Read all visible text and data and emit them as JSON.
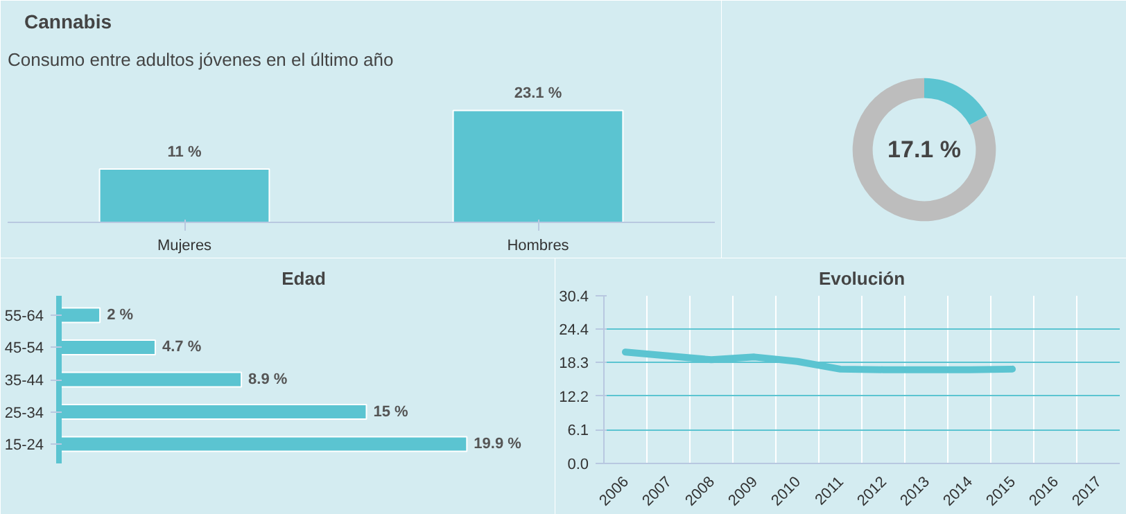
{
  "chart_data": [
    {
      "type": "bar",
      "title": "Cannabis",
      "subtitle": "Consumo entre adultos jóvenes en el último año",
      "categories": [
        "Mujeres",
        "Hombres"
      ],
      "values": [
        11,
        23.1
      ],
      "value_labels": [
        "11 %",
        "23.1 %"
      ],
      "color": "#5bc4d1",
      "tick_labels": "x",
      "grid": false
    },
    {
      "type": "donut",
      "categories": [
        null,
        null
      ],
      "values": [
        17.1,
        82.9
      ],
      "colors": [
        "#5bc4d1",
        "#bdbdbd"
      ],
      "value_labels": [
        "17.1 %",
        null
      ]
    },
    {
      "type": "bar",
      "orientation": "horizontal",
      "title": "Edad",
      "categories": [
        "55-64",
        "45-54",
        "35-44",
        "25-34",
        "15-24"
      ],
      "values": [
        2,
        4.7,
        8.9,
        15,
        19.9
      ],
      "value_labels": [
        "2 %",
        "4.7 %",
        "8.9 %",
        "15 %",
        "19.9 %"
      ],
      "color": "#5bc4d1",
      "tick_labels": "y",
      "grid": false
    },
    {
      "type": "line",
      "title": "Evolución",
      "categories": [
        "2006",
        "2007",
        "2008",
        "2009",
        "2010",
        "2011",
        "2012",
        "2013",
        "2014",
        "2015",
        "2016",
        "2017"
      ],
      "values": [
        20.2,
        19.5,
        18.8,
        19.3,
        18.5,
        17.1,
        17.0,
        17.0,
        17.0,
        17.1,
        null,
        null
      ],
      "color": "#5bc4d1",
      "ylim": [
        0,
        30.4
      ],
      "yticks": [
        {
          "value": 0,
          "label": "0.0"
        },
        6.1,
        12.2,
        18.3,
        24.4,
        30.4
      ],
      "grid": true,
      "marker": "none",
      "line_style": "solid"
    }
  ]
}
